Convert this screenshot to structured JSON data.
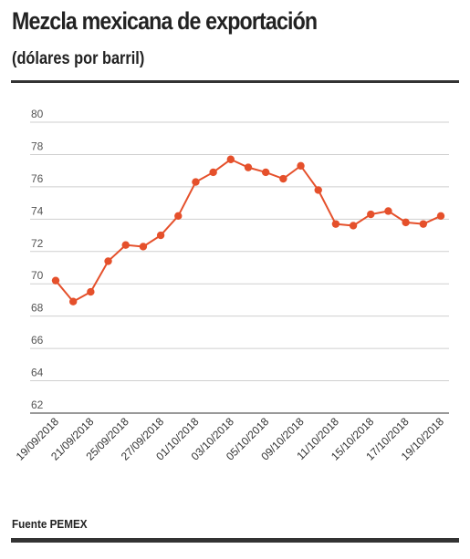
{
  "header": {
    "title": "Mezcla mexicana de exportación",
    "subtitle": "(dólares por barril)"
  },
  "footer": {
    "source": "Fuente PEMEX"
  },
  "colors": {
    "series": "#e5502b",
    "grid": "#cfcfcf",
    "axis": "#333333"
  },
  "chart_data": {
    "type": "line",
    "title": "Mezcla mexicana de exportación",
    "subtitle": "(dólares por barril)",
    "xlabel": "",
    "ylabel": "",
    "ylim": [
      62,
      80
    ],
    "y_ticks": [
      62,
      64,
      66,
      68,
      70,
      72,
      74,
      76,
      78,
      80
    ],
    "grid": true,
    "legend": "none",
    "x": [
      "19/09/2018",
      "20/09/2018",
      "21/09/2018",
      "24/09/2018",
      "25/09/2018",
      "26/09/2018",
      "27/09/2018",
      "28/09/2018",
      "01/10/2018",
      "02/10/2018",
      "03/10/2018",
      "04/10/2018",
      "05/10/2018",
      "08/10/2018",
      "09/10/2018",
      "10/10/2018",
      "11/10/2018",
      "12/10/2018",
      "15/10/2018",
      "16/10/2018",
      "17/10/2018",
      "18/10/2018",
      "19/10/2018"
    ],
    "x_tick_labels": [
      "19/09/2018",
      "21/09/2018",
      "25/09/2018",
      "27/09/2018",
      "01/10/2018",
      "03/10/2018",
      "05/10/2018",
      "09/10/2018",
      "11/10/2018",
      "15/10/2018",
      "17/10/2018",
      "19/10/2018"
    ],
    "series": [
      {
        "values": [
          70.2,
          68.9,
          69.5,
          71.4,
          72.4,
          72.3,
          73.0,
          74.2,
          76.3,
          76.9,
          77.7,
          77.2,
          76.9,
          76.5,
          77.3,
          75.8,
          73.7,
          73.6,
          74.3,
          74.5,
          73.8,
          73.7,
          74.2
        ]
      }
    ]
  }
}
